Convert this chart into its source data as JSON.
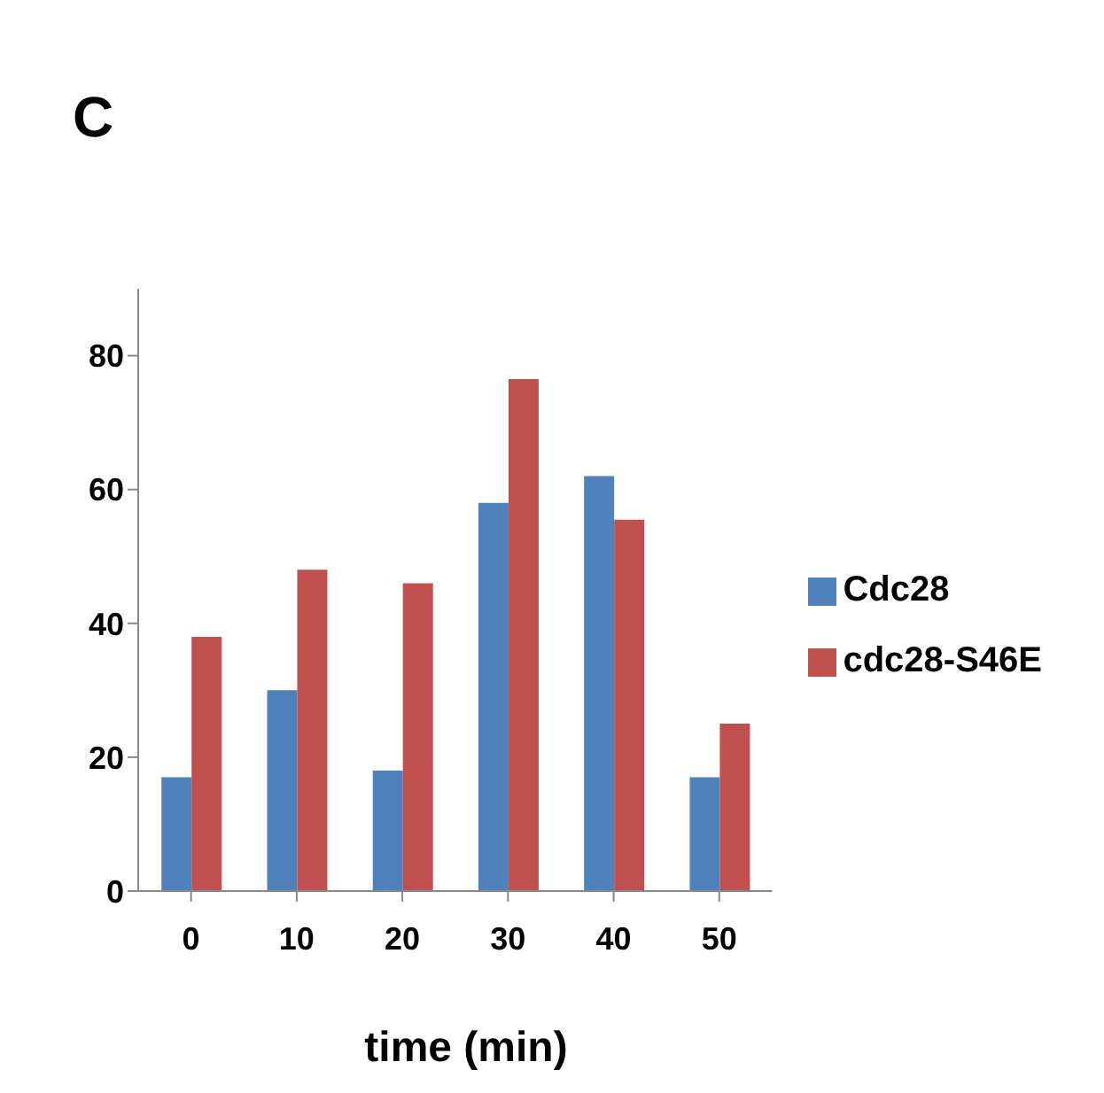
{
  "chart_data": {
    "type": "bar",
    "title": "C",
    "xlabel": "time (min)",
    "categories": [
      "0",
      "10",
      "20",
      "30",
      "40",
      "50"
    ],
    "series": [
      {
        "name": "Cdc28",
        "color": "#4f81bd",
        "values": [
          17,
          30,
          18,
          58,
          62,
          17
        ]
      },
      {
        "name": "cdc28-S46E",
        "color": "#c0504d",
        "values": [
          38,
          48,
          46,
          76.5,
          55.5,
          25
        ]
      }
    ],
    "ylim": [
      0,
      90
    ],
    "yticks": [
      0,
      20,
      40,
      60,
      80
    ],
    "grid": false,
    "legend": "right"
  }
}
